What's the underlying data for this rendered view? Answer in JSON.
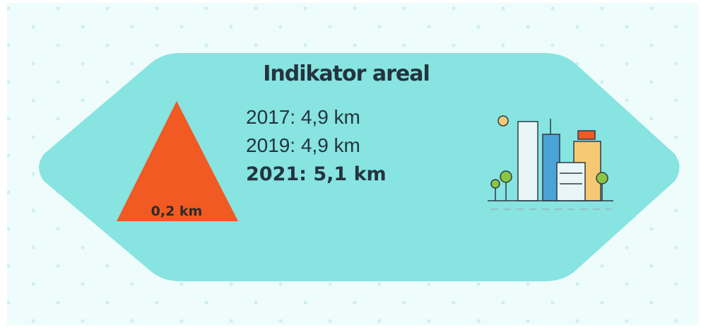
{
  "title": "Indikator areal",
  "entries": [
    "2017: 4,9 km",
    "2019: 4,9 km",
    "2021: 5,1 km"
  ],
  "change_label": "0,2 km"
}
